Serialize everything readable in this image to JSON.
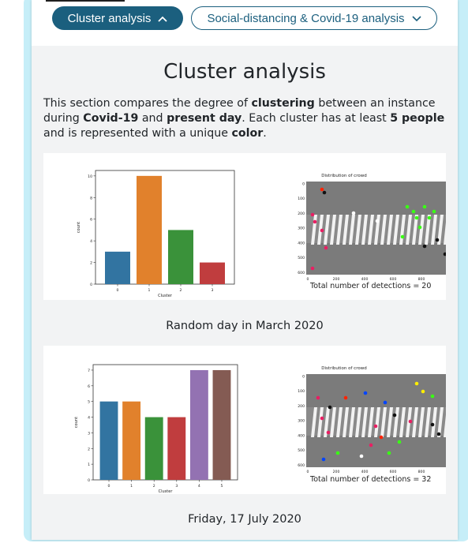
{
  "tabs": [
    {
      "label": "Cluster analysis",
      "state": "expanded"
    },
    {
      "label": "Social-distancing & Covid-19 analysis",
      "state": "collapsed"
    }
  ],
  "section": {
    "title": "Cluster analysis",
    "description": {
      "t1": "This section compares the degree of ",
      "b1": "clustering",
      "t2": " between an instance during ",
      "b2": "Covid-19",
      "t3": " and ",
      "b3": "present day",
      "t4": ". Each cluster has at least ",
      "b4": "5 people",
      "t5": " and is represented with a unique ",
      "b5": "color",
      "t6": "."
    }
  },
  "figures": [
    {
      "caption": "Random day in March 2020",
      "detections_label": "Total number of detections = 20",
      "image_title": "Distribution of crowd",
      "image_yticks": [
        "0",
        "100",
        "200",
        "300",
        "400",
        "500",
        "600"
      ],
      "image_xticks": [
        "0",
        "200",
        "400",
        "600",
        "800"
      ]
    },
    {
      "caption": "Friday, 17 July 2020",
      "detections_label": "Total number of detections = 32",
      "image_title": "Distribution of crowd",
      "image_yticks": [
        "0",
        "100",
        "200",
        "300",
        "400",
        "500",
        "600"
      ],
      "image_xticks": [
        "0",
        "200",
        "400",
        "600",
        "800"
      ]
    }
  ],
  "chart_data": [
    {
      "type": "bar",
      "categories": [
        "0",
        "1",
        "2",
        "3"
      ],
      "values": [
        3,
        10,
        5,
        2
      ],
      "colors": [
        "#3274a1",
        "#e1812c",
        "#3a923a",
        "#c03d3e"
      ],
      "xlabel": "Cluster",
      "ylabel": "count",
      "ylim": [
        0,
        10.5
      ],
      "yticks": [
        0,
        2,
        4,
        6,
        8,
        10
      ]
    },
    {
      "type": "bar",
      "categories": [
        "0",
        "1",
        "2",
        "3",
        "4",
        "5"
      ],
      "values": [
        5,
        5,
        4,
        4,
        7,
        7
      ],
      "colors": [
        "#3274a1",
        "#e1812c",
        "#3a923a",
        "#c03d3e",
        "#9372b2",
        "#845b53"
      ],
      "xlabel": "Cluster",
      "ylabel": "count",
      "ylim": [
        0,
        7.35
      ],
      "yticks": [
        0,
        1,
        2,
        3,
        4,
        5,
        6,
        7
      ]
    }
  ],
  "colors": {
    "accent": "#1b5f7e",
    "section_bg": "#f2f3f4",
    "frame": "#c6eef8"
  },
  "icons": {
    "expanded": "chevron-up-icon",
    "collapsed": "chevron-down-icon"
  }
}
